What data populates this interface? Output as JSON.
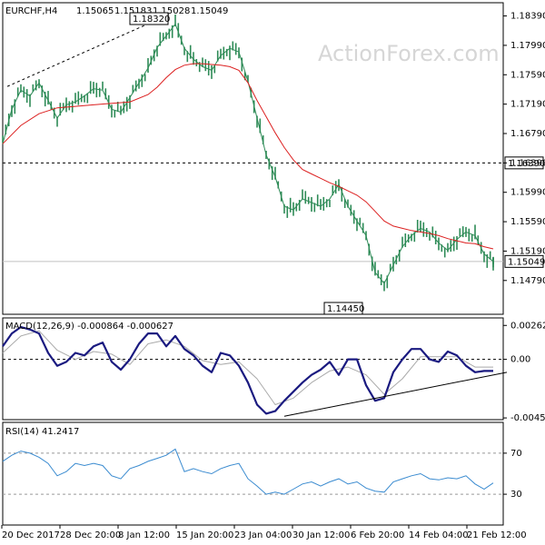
{
  "chart_data": [
    {
      "type": "candlestick",
      "title": "EURCHF,H4",
      "ohlc_readout": [
        "1.15065",
        "1.15183",
        "1.15028",
        "1.15049"
      ],
      "watermark": "ActionForex.com",
      "ylim": [
        1.1433,
        1.1857
      ],
      "y_ticks": [
        "1.18390",
        "1.17990",
        "1.17590",
        "1.17190",
        "1.16790",
        "1.16390",
        "1.15990",
        "1.15590",
        "1.15190",
        "1.14790"
      ],
      "x_ticks": [
        "20 Dec 2017",
        "28 Dec 20:00",
        "8 Jan 12:00",
        "15 Jan 20:00",
        "23 Jan 04:00",
        "30 Jan 12:00",
        "6 Feb 20:00",
        "14 Feb 04:00",
        "21 Feb 12:00"
      ],
      "horizontal_levels": [
        {
          "value": 1.1639,
          "label": "1.16390",
          "style": "dashed",
          "color": "#000000"
        },
        {
          "value": 1.15049,
          "label": "1.15049",
          "style": "solid",
          "color": "#c0c0c0"
        }
      ],
      "annotations": [
        {
          "label": "1.18320",
          "kind": "high"
        },
        {
          "label": "1.14450",
          "kind": "low"
        }
      ],
      "series": [
        {
          "kind": "price",
          "color": "#2e8b57",
          "x": [
            0,
            10,
            20,
            30,
            40,
            50,
            60,
            70,
            80,
            90,
            100,
            110,
            120,
            130,
            140,
            150,
            160,
            170,
            180,
            190,
            200,
            210,
            220,
            230,
            240,
            250,
            260,
            270,
            280,
            290,
            300,
            310,
            320,
            330,
            340,
            350,
            360,
            370,
            380,
            390,
            400,
            410,
            420,
            430,
            440,
            450,
            460,
            470,
            480,
            490,
            500,
            510,
            520,
            530,
            540
          ],
          "y": [
            1.1665,
            1.1712,
            1.1738,
            1.173,
            1.1748,
            1.1724,
            1.17,
            1.1718,
            1.1722,
            1.173,
            1.174,
            1.1738,
            1.1712,
            1.1708,
            1.1728,
            1.1748,
            1.1768,
            1.1796,
            1.1812,
            1.1828,
            1.1795,
            1.178,
            1.177,
            1.1765,
            1.1785,
            1.1795,
            1.179,
            1.175,
            1.17,
            1.165,
            1.162,
            1.158,
            1.1575,
            1.159,
            1.1585,
            1.158,
            1.159,
            1.161,
            1.158,
            1.156,
            1.154,
            1.149,
            1.1475,
            1.15,
            1.1525,
            1.154,
            1.155,
            1.1545,
            1.153,
            1.152,
            1.1535,
            1.1545,
            1.154,
            1.1515,
            1.1505
          ]
        },
        {
          "kind": "moving-average",
          "color": "#dc2020",
          "x": [
            0,
            20,
            40,
            60,
            80,
            100,
            120,
            140,
            160,
            170,
            180,
            190,
            200,
            210,
            220,
            230,
            240,
            250,
            260,
            270,
            280,
            290,
            300,
            310,
            320,
            330,
            340,
            350,
            360,
            370,
            380,
            390,
            400,
            410,
            420,
            430,
            440,
            450,
            460,
            470,
            480,
            490,
            500,
            510,
            520,
            530,
            540
          ],
          "y": [
            1.1665,
            1.169,
            1.1706,
            1.1714,
            1.1716,
            1.1718,
            1.172,
            1.1722,
            1.1732,
            1.1742,
            1.1755,
            1.1766,
            1.1772,
            1.1774,
            1.1774,
            1.1773,
            1.1772,
            1.177,
            1.1765,
            1.1748,
            1.1724,
            1.1702,
            1.168,
            1.166,
            1.1643,
            1.163,
            1.1624,
            1.1618,
            1.1612,
            1.1607,
            1.1601,
            1.1595,
            1.1586,
            1.1573,
            1.156,
            1.1553,
            1.155,
            1.1547,
            1.1545,
            1.1543,
            1.154,
            1.1536,
            1.1533,
            1.153,
            1.1529,
            1.1525,
            1.1522
          ]
        },
        {
          "kind": "trendline",
          "color": "#000000",
          "style": "dashed",
          "x": [
            5,
            185
          ],
          "y": [
            1.1743,
            1.1842
          ]
        }
      ]
    },
    {
      "type": "line",
      "title": "MACD(12,26,9) -0.000864 -0.000627",
      "ylim": [
        -0.00466,
        0.0032
      ],
      "y_ticks": [
        "0.00262",
        "0.00",
        "-0.004526"
      ],
      "zero_line": {
        "value": 0.0,
        "style": "dashed"
      },
      "series": [
        {
          "kind": "macd",
          "color": "#1a1a80",
          "x": [
            0,
            10,
            20,
            30,
            40,
            50,
            60,
            70,
            80,
            90,
            100,
            110,
            120,
            130,
            140,
            150,
            160,
            170,
            180,
            190,
            200,
            210,
            220,
            230,
            240,
            250,
            260,
            270,
            280,
            290,
            300,
            310,
            320,
            330,
            340,
            350,
            360,
            370,
            380,
            390,
            400,
            410,
            420,
            430,
            440,
            450,
            460,
            470,
            480,
            490,
            500,
            510,
            520,
            530,
            540
          ],
          "y": [
            0.001,
            0.002,
            0.0025,
            0.0023,
            0.002,
            0.0005,
            -0.0005,
            -0.0002,
            0.0005,
            0.0003,
            0.001,
            0.0013,
            -0.0002,
            -0.0008,
            0.0,
            0.0012,
            0.002,
            0.002,
            0.001,
            0.0018,
            0.0008,
            0.0003,
            -0.0005,
            -0.001,
            0.0005,
            0.0003,
            -0.0005,
            -0.0018,
            -0.0035,
            -0.0042,
            -0.004,
            -0.0032,
            -0.0025,
            -0.0018,
            -0.0012,
            -0.0008,
            -0.0002,
            -0.0012,
            0.0,
            0.0,
            -0.002,
            -0.0032,
            -0.003,
            -0.001,
            0.0,
            0.0008,
            0.0008,
            0.0,
            -0.0002,
            0.0006,
            0.0003,
            -0.0005,
            -0.001,
            -0.0009,
            -0.0009
          ]
        },
        {
          "kind": "signal",
          "color": "#aaaaaa",
          "x": [
            0,
            20,
            40,
            60,
            80,
            100,
            120,
            140,
            160,
            180,
            200,
            220,
            240,
            260,
            280,
            300,
            320,
            340,
            360,
            380,
            400,
            420,
            440,
            460,
            480,
            500,
            520,
            540
          ],
          "y": [
            0.0005,
            0.0018,
            0.0022,
            0.0007,
            0.0,
            0.0006,
            0.0004,
            -0.0004,
            0.0012,
            0.0015,
            0.001,
            -0.0001,
            -0.0004,
            -0.0002,
            -0.0015,
            -0.0035,
            -0.003,
            -0.0018,
            -0.0009,
            -0.0006,
            -0.0012,
            -0.0027,
            -0.0015,
            0.0002,
            0.0002,
            0.0002,
            -0.0006,
            -0.0006
          ]
        },
        {
          "kind": "trendline",
          "color": "#000000",
          "style": "solid",
          "x": [
            310,
            555
          ],
          "y": [
            -0.0044,
            -0.001
          ]
        }
      ]
    },
    {
      "type": "line",
      "title": "RSI(14) 41.2417",
      "ylim": [
        0,
        100
      ],
      "y_ticks": [
        "70",
        "30"
      ],
      "levels": [
        {
          "value": 70,
          "style": "dashed"
        },
        {
          "value": 30,
          "style": "dashed"
        }
      ],
      "series": [
        {
          "kind": "rsi",
          "color": "#3a8bd0",
          "x": [
            0,
            10,
            20,
            30,
            40,
            50,
            60,
            70,
            80,
            90,
            100,
            110,
            120,
            130,
            140,
            150,
            160,
            170,
            180,
            190,
            200,
            210,
            220,
            230,
            240,
            250,
            260,
            270,
            280,
            290,
            300,
            310,
            320,
            330,
            340,
            350,
            360,
            370,
            380,
            390,
            400,
            410,
            420,
            430,
            440,
            450,
            460,
            470,
            480,
            490,
            500,
            510,
            520,
            530,
            540
          ],
          "y": [
            62,
            68,
            72,
            70,
            66,
            60,
            48,
            52,
            60,
            58,
            60,
            58,
            48,
            45,
            55,
            58,
            62,
            65,
            68,
            74,
            52,
            55,
            52,
            50,
            55,
            58,
            60,
            45,
            38,
            30,
            32,
            30,
            35,
            40,
            42,
            38,
            42,
            45,
            40,
            42,
            36,
            33,
            32,
            42,
            45,
            48,
            50,
            45,
            44,
            46,
            45,
            48,
            40,
            35,
            41
          ]
        }
      ]
    }
  ]
}
